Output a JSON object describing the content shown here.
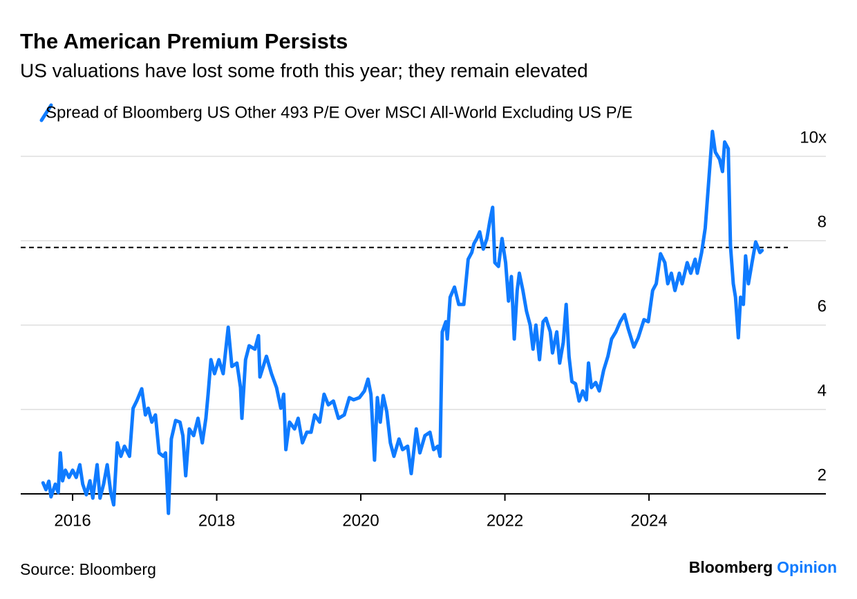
{
  "chart_data": {
    "type": "line",
    "title": "The American Premium Persists",
    "subtitle": "US valuations have lost some froth this year; they remain elevated",
    "source": "Source: Bloomberg",
    "brand": "Bloomberg",
    "brand_suffix": "Opinion",
    "xlim": [
      2015.28,
      2026.455
    ],
    "xticks": [
      2016,
      2018,
      2020,
      2022,
      2024
    ],
    "ylim": [
      1.5,
      10.75
    ],
    "yticks": [
      2,
      4,
      6,
      8,
      {
        "value": 10,
        "label": "10x"
      }
    ],
    "grid": true,
    "reference_line": 7.84,
    "x": [
      2015.59,
      2015.63,
      2015.67,
      2015.7,
      2015.76,
      2015.8,
      2015.83,
      2015.86,
      2015.9,
      2015.95,
      2016.0,
      2016.05,
      2016.1,
      2016.14,
      2016.19,
      2016.24,
      2016.28,
      2016.34,
      2016.38,
      2016.43,
      2016.48,
      2016.53,
      2016.57,
      2016.62,
      2016.67,
      2016.72,
      2016.79,
      2016.84,
      2016.89,
      2016.96,
      2017.01,
      2017.05,
      2017.1,
      2017.15,
      2017.2,
      2017.26,
      2017.29,
      2017.33,
      2017.37,
      2017.43,
      2017.49,
      2017.53,
      2017.57,
      2017.62,
      2017.68,
      2017.74,
      2017.8,
      2017.85,
      2017.88,
      2017.92,
      2017.97,
      2018.03,
      2018.09,
      2018.16,
      2018.21,
      2018.28,
      2018.33,
      2018.35,
      2018.4,
      2018.45,
      2018.53,
      2018.58,
      2018.6,
      2018.69,
      2018.76,
      2018.83,
      2018.89,
      2018.93,
      2018.96,
      2019.01,
      2019.08,
      2019.13,
      2019.19,
      2019.25,
      2019.31,
      2019.36,
      2019.43,
      2019.49,
      2019.55,
      2019.62,
      2019.69,
      2019.77,
      2019.84,
      2019.9,
      2019.98,
      2020.05,
      2020.1,
      2020.14,
      2020.19,
      2020.23,
      2020.27,
      2020.31,
      2020.36,
      2020.41,
      2020.46,
      2020.53,
      2020.58,
      2020.65,
      2020.7,
      2020.77,
      2020.82,
      2020.89,
      2020.96,
      2021.01,
      2021.07,
      2021.1,
      2021.13,
      2021.18,
      2021.2,
      2021.24,
      2021.3,
      2021.36,
      2021.43,
      2021.49,
      2021.54,
      2021.57,
      2021.61,
      2021.65,
      2021.7,
      2021.75,
      2021.79,
      2021.83,
      2021.86,
      2021.91,
      2021.96,
      2022.01,
      2022.05,
      2022.09,
      2022.13,
      2022.17,
      2022.2,
      2022.25,
      2022.3,
      2022.35,
      2022.39,
      2022.43,
      2022.48,
      2022.53,
      2022.57,
      2022.63,
      2022.66,
      2022.72,
      2022.76,
      2022.81,
      2022.85,
      2022.89,
      2022.93,
      2022.98,
      2023.03,
      2023.08,
      2023.13,
      2023.16,
      2023.2,
      2023.26,
      2023.31,
      2023.37,
      2023.43,
      2023.48,
      2023.54,
      2023.6,
      2023.66,
      2023.71,
      2023.79,
      2023.85,
      2023.93,
      2023.99,
      2024.05,
      2024.1,
      2024.16,
      2024.22,
      2024.26,
      2024.31,
      2024.36,
      2024.42,
      2024.46,
      2024.53,
      2024.58,
      2024.64,
      2024.67,
      2024.73,
      2024.78,
      2024.83,
      2024.88,
      2024.92,
      2024.98,
      2025.02,
      2025.05,
      2025.1,
      2025.13,
      2025.17,
      2025.2,
      2025.24,
      2025.27,
      2025.31,
      2025.34,
      2025.38,
      2025.43,
      2025.48,
      2025.54,
      2025.57
    ],
    "series": [
      {
        "name": "Spread of Bloomberg US Other 493 P/E Over MSCI All-World Excluding US P/E",
        "color": "#0f7bff",
        "values": [
          2.26,
          2.1,
          2.3,
          1.93,
          2.23,
          2.03,
          2.97,
          2.31,
          2.56,
          2.39,
          2.56,
          2.39,
          2.69,
          2.23,
          1.98,
          2.31,
          1.9,
          2.69,
          1.9,
          2.23,
          2.69,
          2.03,
          1.74,
          3.21,
          2.89,
          3.13,
          2.89,
          4.03,
          4.2,
          4.49,
          3.87,
          4.03,
          3.7,
          3.87,
          2.97,
          2.89,
          2.97,
          1.54,
          3.3,
          3.74,
          3.7,
          3.38,
          2.43,
          3.54,
          3.38,
          3.79,
          3.21,
          3.79,
          4.36,
          5.18,
          4.85,
          5.18,
          4.85,
          5.95,
          5.02,
          5.1,
          4.52,
          3.79,
          5.18,
          5.51,
          5.43,
          5.75,
          4.77,
          5.26,
          4.85,
          4.52,
          4.03,
          4.36,
          3.05,
          3.7,
          3.54,
          3.79,
          3.21,
          3.46,
          3.46,
          3.87,
          3.7,
          4.36,
          4.11,
          4.2,
          3.79,
          3.87,
          4.28,
          4.23,
          4.28,
          4.44,
          4.72,
          4.36,
          2.8,
          4.28,
          3.7,
          4.33,
          3.95,
          3.21,
          2.89,
          3.3,
          3.05,
          3.13,
          2.48,
          3.54,
          2.97,
          3.38,
          3.46,
          3.05,
          3.13,
          2.89,
          5.84,
          6.08,
          5.67,
          6.66,
          6.9,
          6.49,
          6.49,
          7.56,
          7.72,
          7.93,
          8.05,
          8.21,
          7.8,
          8.05,
          8.46,
          8.79,
          7.48,
          7.39,
          8.05,
          7.48,
          6.57,
          7.15,
          5.67,
          6.82,
          7.23,
          6.82,
          6.33,
          6.0,
          5.43,
          6.0,
          5.18,
          6.08,
          6.16,
          5.84,
          5.34,
          5.84,
          5.1,
          5.59,
          6.49,
          5.26,
          4.66,
          4.61,
          4.2,
          4.44,
          4.23,
          5.1,
          4.52,
          4.64,
          4.44,
          4.93,
          5.26,
          5.67,
          5.84,
          6.08,
          6.25,
          5.92,
          5.48,
          5.7,
          6.13,
          6.08,
          6.82,
          6.98,
          7.69,
          7.48,
          6.98,
          7.23,
          6.82,
          7.23,
          6.98,
          7.48,
          7.23,
          7.56,
          7.23,
          7.72,
          8.3,
          9.44,
          10.59,
          10.1,
          9.93,
          9.64,
          10.34,
          10.18,
          7.89,
          6.98,
          6.66,
          5.7,
          6.66,
          6.49,
          7.64,
          6.98,
          7.48,
          7.97,
          7.72,
          7.77
        ]
      }
    ]
  }
}
